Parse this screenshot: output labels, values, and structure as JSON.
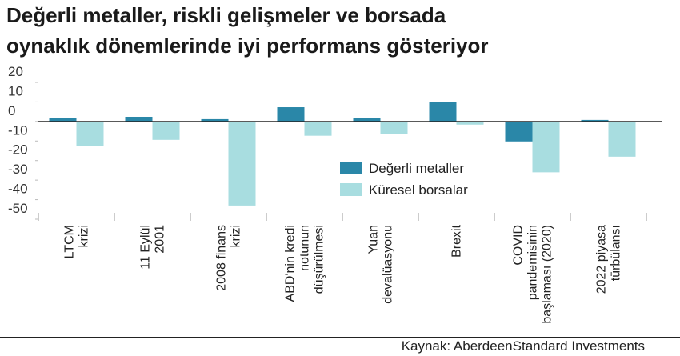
{
  "chart_data": {
    "type": "bar",
    "title": [
      "Değerli metaller, riskli gelişmeler ve borsada",
      "oynaklık dönemlerinde iyi performans gösteriyor"
    ],
    "categories": [
      [
        "LTCM",
        "krizi"
      ],
      [
        "11 Eylül",
        "2001"
      ],
      [
        "2008 finans",
        "krizi"
      ],
      [
        "ABD'nin kredi",
        "notunun",
        "düşürülmesi"
      ],
      [
        "Yuan",
        "devalüasyonu"
      ],
      [
        "Brexit"
      ],
      [
        "COVID",
        "pandemisinin",
        "başlaması (2020)"
      ],
      [
        "2022 piyasa",
        "türbülansı"
      ]
    ],
    "series": [
      {
        "name": "Değerli metaller",
        "color": "#2a87a8",
        "values": [
          1.6,
          2.4,
          1.2,
          7.3,
          1.6,
          9.8,
          -10.2,
          0.8
        ]
      },
      {
        "name": "Küresel borsalar",
        "color": "#a8dde0",
        "values": [
          -12.6,
          -9.4,
          -43,
          -7.3,
          -6.5,
          -1.6,
          -26,
          -18
        ]
      }
    ],
    "ylim": [
      -50,
      20
    ],
    "yticks": [
      20,
      10,
      0,
      -10,
      -20,
      -30,
      -40,
      -50
    ],
    "source": "Kaynak: AberdeenStandard Investments"
  }
}
